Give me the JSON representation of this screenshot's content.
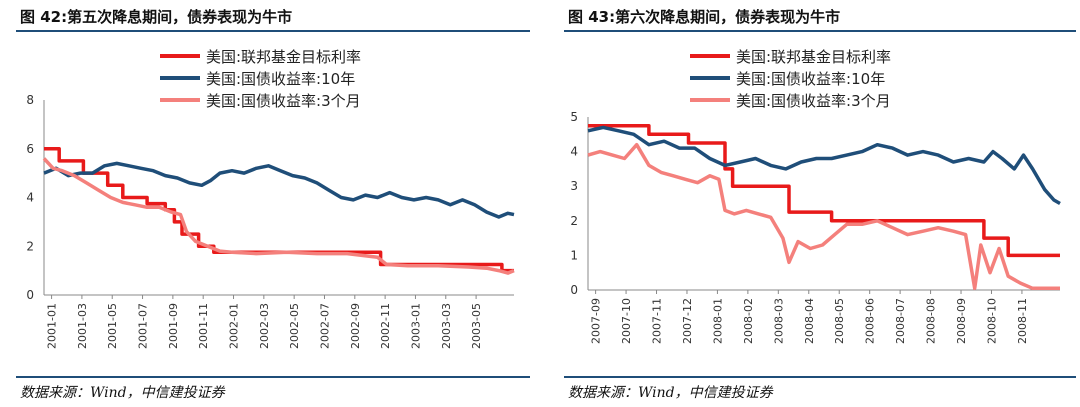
{
  "figures": [
    {
      "title": "图 42:第五次降息期间，债券表现为牛市",
      "source": "数据来源：Wind，中信建投证券"
    },
    {
      "title": "图 43:第六次降息期间，债券表现为牛市",
      "source": "数据来源：Wind，中信建投证券"
    }
  ],
  "chart_data": [
    {
      "type": "line",
      "title": "图 42:第五次降息期间，债券表现为牛市",
      "xlabel": "",
      "ylabel": "",
      "ylim": [
        0,
        8
      ],
      "yticks": [
        "0",
        "2",
        "4",
        "6",
        "8"
      ],
      "xticks": [
        "2001-01",
        "2001-03",
        "2001-05",
        "2001-07",
        "2001-09",
        "2001-11",
        "2002-01",
        "2002-03",
        "2002-05",
        "2002-07",
        "2002-09",
        "2002-11",
        "2003-01",
        "2003-03",
        "2003-05"
      ],
      "grid": false,
      "legend_position": "top-center",
      "series": [
        {
          "name": "美国:联邦基金目标利率",
          "color": "#e81a1a",
          "points": [
            [
              0,
              6.0
            ],
            [
              0.5,
              6.0
            ],
            [
              0.5,
              5.5
            ],
            [
              1.3,
              5.5
            ],
            [
              1.3,
              5.0
            ],
            [
              2.1,
              5.0
            ],
            [
              2.1,
              4.5
            ],
            [
              2.6,
              4.5
            ],
            [
              2.6,
              4.0
            ],
            [
              3.4,
              4.0
            ],
            [
              3.4,
              3.75
            ],
            [
              4.0,
              3.75
            ],
            [
              4.0,
              3.5
            ],
            [
              4.3,
              3.5
            ],
            [
              4.3,
              3.0
            ],
            [
              4.55,
              3.0
            ],
            [
              4.55,
              2.5
            ],
            [
              5.1,
              2.5
            ],
            [
              5.1,
              2.0
            ],
            [
              5.6,
              2.0
            ],
            [
              5.6,
              1.75
            ],
            [
              11.1,
              1.75
            ],
            [
              11.1,
              1.25
            ],
            [
              15.1,
              1.25
            ],
            [
              15.1,
              1.0
            ],
            [
              15.5,
              1.0
            ]
          ]
        },
        {
          "name": "美国:国债收益率:10年",
          "color": "#1f4e79",
          "points": [
            [
              0,
              5.0
            ],
            [
              0.4,
              5.2
            ],
            [
              0.8,
              4.9
            ],
            [
              1.2,
              5.0
            ],
            [
              1.6,
              5.0
            ],
            [
              2.0,
              5.3
            ],
            [
              2.4,
              5.4
            ],
            [
              2.8,
              5.3
            ],
            [
              3.2,
              5.2
            ],
            [
              3.6,
              5.1
            ],
            [
              4.0,
              4.9
            ],
            [
              4.4,
              4.8
            ],
            [
              4.8,
              4.6
            ],
            [
              5.2,
              4.5
            ],
            [
              5.5,
              4.7
            ],
            [
              5.8,
              5.0
            ],
            [
              6.2,
              5.1
            ],
            [
              6.6,
              5.0
            ],
            [
              7.0,
              5.2
            ],
            [
              7.4,
              5.3
            ],
            [
              7.8,
              5.1
            ],
            [
              8.2,
              4.9
            ],
            [
              8.6,
              4.8
            ],
            [
              9.0,
              4.6
            ],
            [
              9.4,
              4.3
            ],
            [
              9.8,
              4.0
            ],
            [
              10.2,
              3.9
            ],
            [
              10.6,
              4.1
            ],
            [
              11.0,
              4.0
            ],
            [
              11.4,
              4.2
            ],
            [
              11.8,
              4.0
            ],
            [
              12.2,
              3.9
            ],
            [
              12.6,
              4.0
            ],
            [
              13.0,
              3.9
            ],
            [
              13.4,
              3.7
            ],
            [
              13.8,
              3.9
            ],
            [
              14.2,
              3.7
            ],
            [
              14.6,
              3.4
            ],
            [
              15.0,
              3.2
            ],
            [
              15.3,
              3.35
            ],
            [
              15.5,
              3.3
            ]
          ]
        },
        {
          "name": "美国:国债收益率:3个月",
          "color": "#f4807c",
          "points": [
            [
              0,
              5.6
            ],
            [
              0.3,
              5.2
            ],
            [
              0.6,
              5.1
            ],
            [
              1.0,
              4.9
            ],
            [
              1.4,
              4.6
            ],
            [
              1.8,
              4.3
            ],
            [
              2.2,
              4.0
            ],
            [
              2.6,
              3.8
            ],
            [
              3.0,
              3.7
            ],
            [
              3.4,
              3.6
            ],
            [
              3.8,
              3.6
            ],
            [
              4.2,
              3.4
            ],
            [
              4.5,
              3.3
            ],
            [
              4.7,
              2.6
            ],
            [
              5.0,
              2.2
            ],
            [
              5.4,
              2.0
            ],
            [
              5.8,
              1.8
            ],
            [
              6.2,
              1.75
            ],
            [
              7.0,
              1.7
            ],
            [
              8.0,
              1.75
            ],
            [
              9.0,
              1.7
            ],
            [
              10.0,
              1.7
            ],
            [
              11.0,
              1.55
            ],
            [
              11.3,
              1.25
            ],
            [
              12.0,
              1.2
            ],
            [
              13.0,
              1.2
            ],
            [
              14.0,
              1.15
            ],
            [
              14.6,
              1.1
            ],
            [
              15.0,
              1.0
            ],
            [
              15.3,
              0.9
            ],
            [
              15.5,
              1.0
            ]
          ]
        }
      ]
    },
    {
      "type": "line",
      "title": "图 43:第六次降息期间，债券表现为牛市",
      "xlabel": "",
      "ylabel": "",
      "ylim": [
        0,
        5
      ],
      "yticks": [
        "0",
        "1",
        "2",
        "3",
        "4",
        "5"
      ],
      "xticks": [
        "2007-09",
        "2007-10",
        "2007-11",
        "2007-12",
        "2008-01",
        "2008-02",
        "2008-03",
        "2008-04",
        "2008-05",
        "2008-06",
        "2008-07",
        "2008-08",
        "2008-09",
        "2008-10",
        "2008-11"
      ],
      "grid": false,
      "legend_position": "top-center",
      "series": [
        {
          "name": "美国:联邦基金目标利率",
          "color": "#e81a1a",
          "points": [
            [
              0,
              4.75
            ],
            [
              2.0,
              4.75
            ],
            [
              2.0,
              4.5
            ],
            [
              3.3,
              4.5
            ],
            [
              3.3,
              4.25
            ],
            [
              4.5,
              4.25
            ],
            [
              4.5,
              3.5
            ],
            [
              4.75,
              3.5
            ],
            [
              4.75,
              3.0
            ],
            [
              6.6,
              3.0
            ],
            [
              6.6,
              2.25
            ],
            [
              8.0,
              2.25
            ],
            [
              8.0,
              2.0
            ],
            [
              13.0,
              2.0
            ],
            [
              13.0,
              1.5
            ],
            [
              13.8,
              1.5
            ],
            [
              13.8,
              1.0
            ],
            [
              15.5,
              1.0
            ]
          ]
        },
        {
          "name": "美国:国债收益率:10年",
          "color": "#1f4e79",
          "points": [
            [
              0,
              4.6
            ],
            [
              0.5,
              4.7
            ],
            [
              1.0,
              4.6
            ],
            [
              1.5,
              4.5
            ],
            [
              2.0,
              4.2
            ],
            [
              2.5,
              4.3
            ],
            [
              3.0,
              4.1
            ],
            [
              3.5,
              4.1
            ],
            [
              4.0,
              3.8
            ],
            [
              4.5,
              3.6
            ],
            [
              5.0,
              3.7
            ],
            [
              5.5,
              3.8
            ],
            [
              6.0,
              3.6
            ],
            [
              6.5,
              3.5
            ],
            [
              7.0,
              3.7
            ],
            [
              7.5,
              3.8
            ],
            [
              8.0,
              3.8
            ],
            [
              8.5,
              3.9
            ],
            [
              9.0,
              4.0
            ],
            [
              9.5,
              4.2
            ],
            [
              10.0,
              4.1
            ],
            [
              10.5,
              3.9
            ],
            [
              11.0,
              4.0
            ],
            [
              11.5,
              3.9
            ],
            [
              12.0,
              3.7
            ],
            [
              12.5,
              3.8
            ],
            [
              13.0,
              3.7
            ],
            [
              13.3,
              4.0
            ],
            [
              13.6,
              3.8
            ],
            [
              14.0,
              3.5
            ],
            [
              14.3,
              3.9
            ],
            [
              14.6,
              3.5
            ],
            [
              15.0,
              2.9
            ],
            [
              15.3,
              2.6
            ],
            [
              15.5,
              2.5
            ]
          ]
        },
        {
          "name": "美国:国债收益率:3个月",
          "color": "#f4807c",
          "points": [
            [
              0,
              3.9
            ],
            [
              0.4,
              4.0
            ],
            [
              0.8,
              3.9
            ],
            [
              1.2,
              3.8
            ],
            [
              1.6,
              4.2
            ],
            [
              2.0,
              3.6
            ],
            [
              2.4,
              3.4
            ],
            [
              2.8,
              3.3
            ],
            [
              3.2,
              3.2
            ],
            [
              3.6,
              3.1
            ],
            [
              4.0,
              3.3
            ],
            [
              4.3,
              3.2
            ],
            [
              4.5,
              2.3
            ],
            [
              4.8,
              2.2
            ],
            [
              5.2,
              2.3
            ],
            [
              5.6,
              2.2
            ],
            [
              6.0,
              2.1
            ],
            [
              6.4,
              1.5
            ],
            [
              6.6,
              0.8
            ],
            [
              6.9,
              1.4
            ],
            [
              7.3,
              1.2
            ],
            [
              7.7,
              1.3
            ],
            [
              8.1,
              1.6
            ],
            [
              8.5,
              1.9
            ],
            [
              9.0,
              1.9
            ],
            [
              9.5,
              2.0
            ],
            [
              10.0,
              1.8
            ],
            [
              10.5,
              1.6
            ],
            [
              11.0,
              1.7
            ],
            [
              11.5,
              1.8
            ],
            [
              12.0,
              1.7
            ],
            [
              12.4,
              1.6
            ],
            [
              12.7,
              0.05
            ],
            [
              12.9,
              1.3
            ],
            [
              13.2,
              0.5
            ],
            [
              13.5,
              1.2
            ],
            [
              13.8,
              0.4
            ],
            [
              14.2,
              0.2
            ],
            [
              14.6,
              0.05
            ],
            [
              15.0,
              0.05
            ],
            [
              15.5,
              0.05
            ]
          ]
        }
      ]
    }
  ],
  "colors": {
    "rule": "#1f4e79",
    "axis": "#888888",
    "tick_text": "#333333"
  }
}
